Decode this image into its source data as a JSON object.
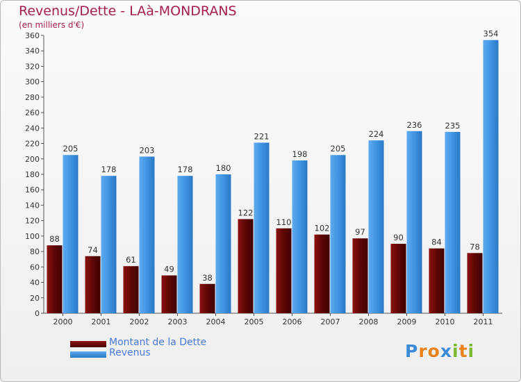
{
  "title": "Revenus/Dette - LAà-MONDRANS",
  "subtitle": "(en milliers d'€)",
  "logo": {
    "text": "Proxiti",
    "letters": [
      {
        "ch": "P",
        "color": "#3d8ad6"
      },
      {
        "ch": "r",
        "color": "#e8831e"
      },
      {
        "ch": "o",
        "color": "#e8831e"
      },
      {
        "ch": "x",
        "color": "#3d8ad6"
      },
      {
        "ch": "i",
        "color": "#7cb82f"
      },
      {
        "ch": "t",
        "color": "#e8831e"
      },
      {
        "ch": "i",
        "color": "#7cb82f"
      }
    ]
  },
  "chart_data": {
    "type": "bar",
    "title": "Revenus/Dette - LAà-MONDRANS",
    "ylabel": "(en milliers d'€)",
    "xlabel": "",
    "categories": [
      "2000",
      "2001",
      "2002",
      "2003",
      "2004",
      "2005",
      "2006",
      "2007",
      "2008",
      "2009",
      "2010",
      "2011"
    ],
    "ylim": [
      0,
      360
    ],
    "ytick_step": 20,
    "grid": false,
    "legend_position": "bottom-left",
    "series": [
      {
        "name": "Montant de la Dette",
        "color": "#6a0a0a",
        "values": [
          88,
          74,
          61,
          49,
          38,
          122,
          110,
          102,
          97,
          90,
          84,
          78
        ]
      },
      {
        "name": "Revenus",
        "color": "#3d92e0",
        "values": [
          205,
          178,
          203,
          178,
          180,
          221,
          198,
          205,
          224,
          236,
          235,
          354
        ]
      }
    ]
  }
}
